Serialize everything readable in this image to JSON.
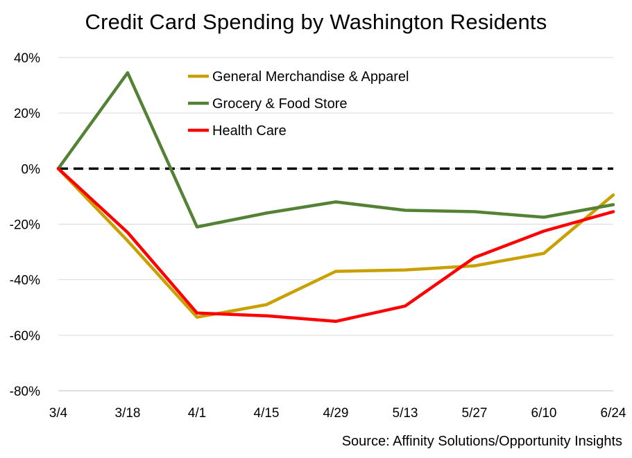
{
  "chart_data": {
    "type": "line",
    "title": "Credit Card Spending by Washington Residents",
    "source": "Source: Affinity Solutions/Opportunity Insights",
    "xlabel": "",
    "ylabel": "",
    "categories": [
      "3/4",
      "3/18",
      "4/1",
      "4/15",
      "4/29",
      "5/13",
      "5/27",
      "6/10",
      "6/24"
    ],
    "ylim": [
      -80,
      40
    ],
    "yticks": [
      40,
      20,
      0,
      -20,
      -40,
      -60,
      -80
    ],
    "ytick_labels": [
      "40%",
      "20%",
      "0%",
      "-20%",
      "-40%",
      "-60%",
      "-80%"
    ],
    "grid": true,
    "legend_position": "top-center",
    "reference_line": {
      "y": 0,
      "style": "dashed",
      "color": "#000000"
    },
    "series": [
      {
        "name": "General Merchandise & Apparel",
        "color": "#C9A000",
        "values": [
          0,
          -26,
          -53.5,
          -49,
          -37,
          -36.5,
          -35,
          -30.5,
          -9.5
        ]
      },
      {
        "name": "Grocery & Food Store",
        "color": "#548235",
        "values": [
          0,
          34.5,
          -21,
          -16,
          -12,
          -15,
          -15.5,
          -17.5,
          -13
        ]
      },
      {
        "name": "Health Care",
        "color": "#FF0000",
        "values": [
          0,
          -23,
          -52,
          -53,
          -55,
          -49.5,
          -32,
          -22.5,
          -15.5
        ]
      }
    ]
  }
}
